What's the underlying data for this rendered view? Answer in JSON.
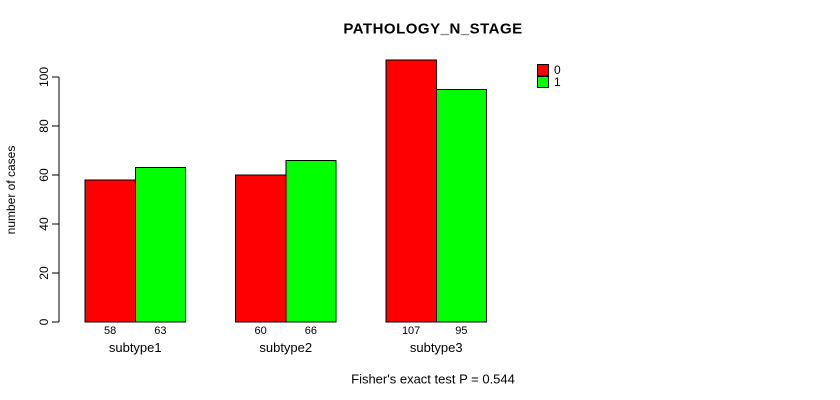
{
  "chart_data": {
    "type": "bar",
    "title": "PATHOLOGY_N_STAGE",
    "ylabel": "number of cases",
    "xlabel": "",
    "categories": [
      "subtype1",
      "subtype2",
      "subtype3"
    ],
    "series": [
      {
        "name": "0",
        "color": "#ff0000",
        "values": [
          58,
          60,
          107
        ]
      },
      {
        "name": "1",
        "color": "#00ff00",
        "values": [
          63,
          66,
          95
        ]
      }
    ],
    "ylim": [
      0,
      100
    ],
    "yticks": [
      0,
      20,
      40,
      60,
      80,
      100
    ],
    "grid": false,
    "legend_position": "right",
    "bar_value_labels_shown": true,
    "bar_edge_color": "#000000",
    "axis_color": "#000000",
    "background_color": "#ffffff"
  },
  "footer": {
    "text": "Fisher's exact test P = 0.544"
  }
}
